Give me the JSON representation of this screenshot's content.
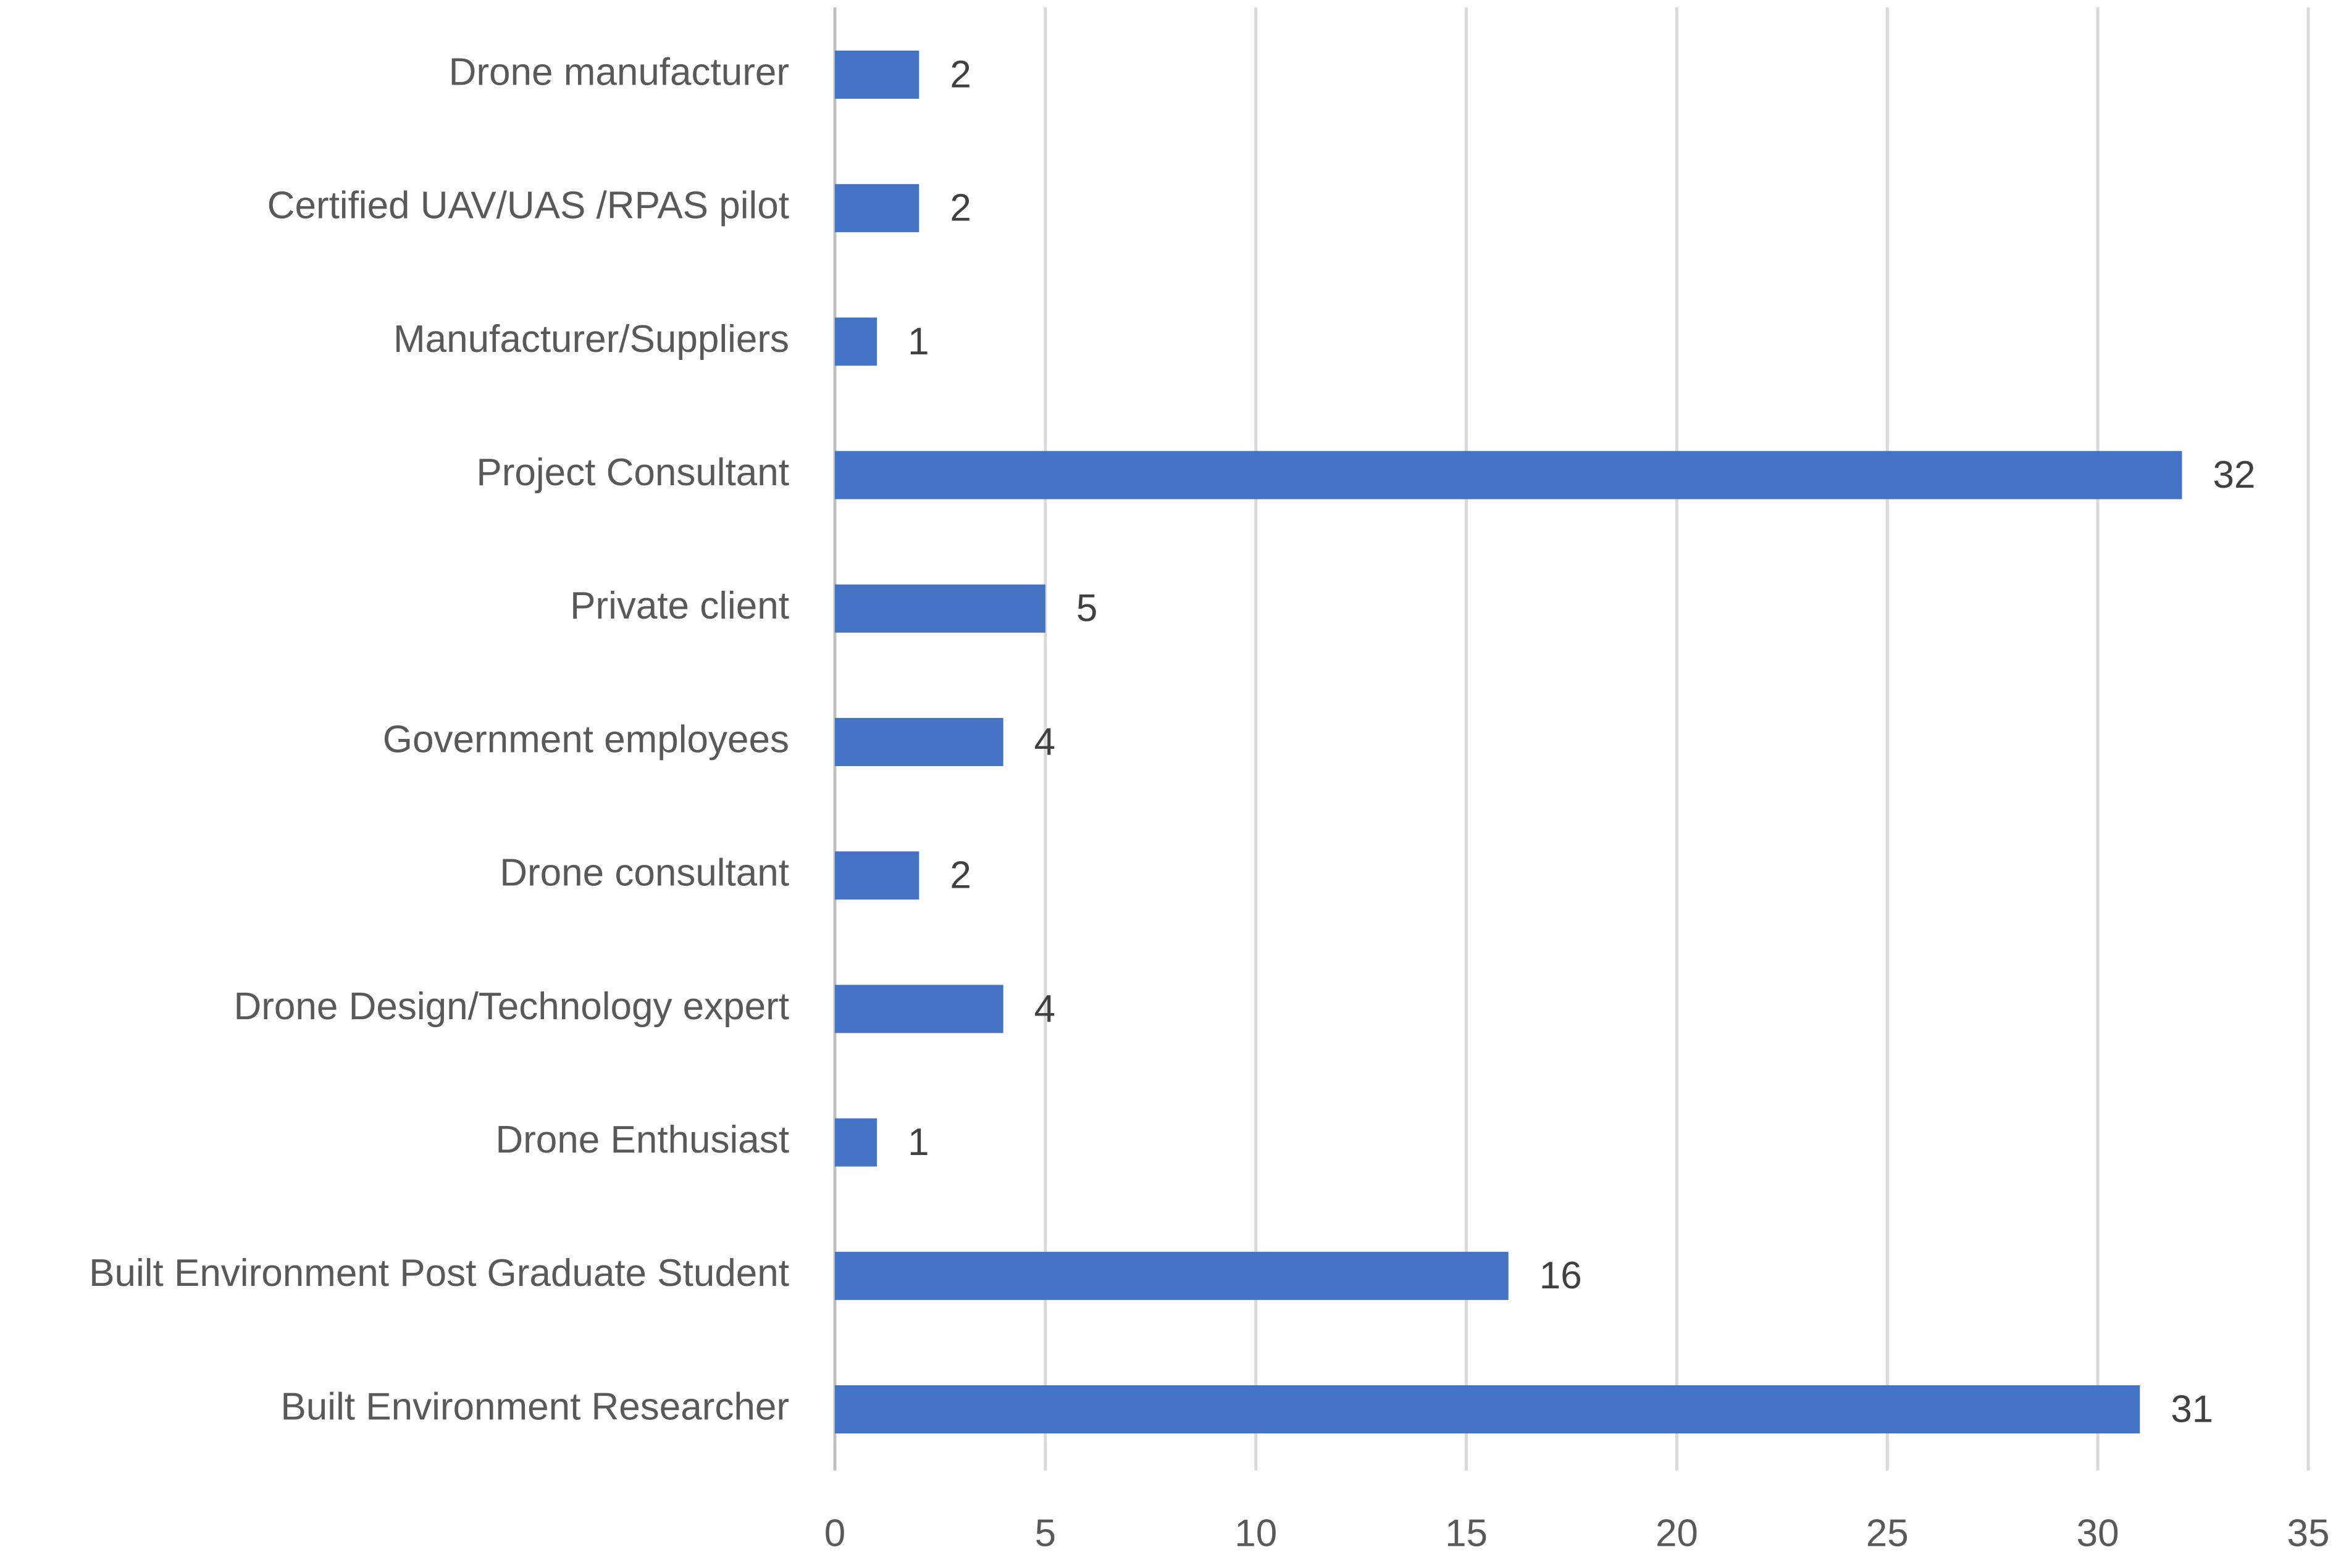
{
  "chart_data": {
    "type": "bar",
    "orientation": "horizontal",
    "categories": [
      "Drone manufacturer",
      "Certified UAV/UAS /RPAS pilot",
      "Manufacturer/Suppliers",
      "Project Consultant",
      "Private client",
      "Government employees",
      "Drone consultant",
      "Drone Design/Technology expert",
      "Drone Enthusiast",
      "Built Environment Post Graduate Student",
      "Built Environment Researcher"
    ],
    "values": [
      2,
      2,
      1,
      32,
      5,
      4,
      2,
      4,
      1,
      16,
      31
    ],
    "color": "#4472c4",
    "xlim": [
      0,
      35
    ],
    "xticks": [
      0,
      5,
      10,
      15,
      20,
      25,
      30,
      35
    ],
    "grid": true
  }
}
